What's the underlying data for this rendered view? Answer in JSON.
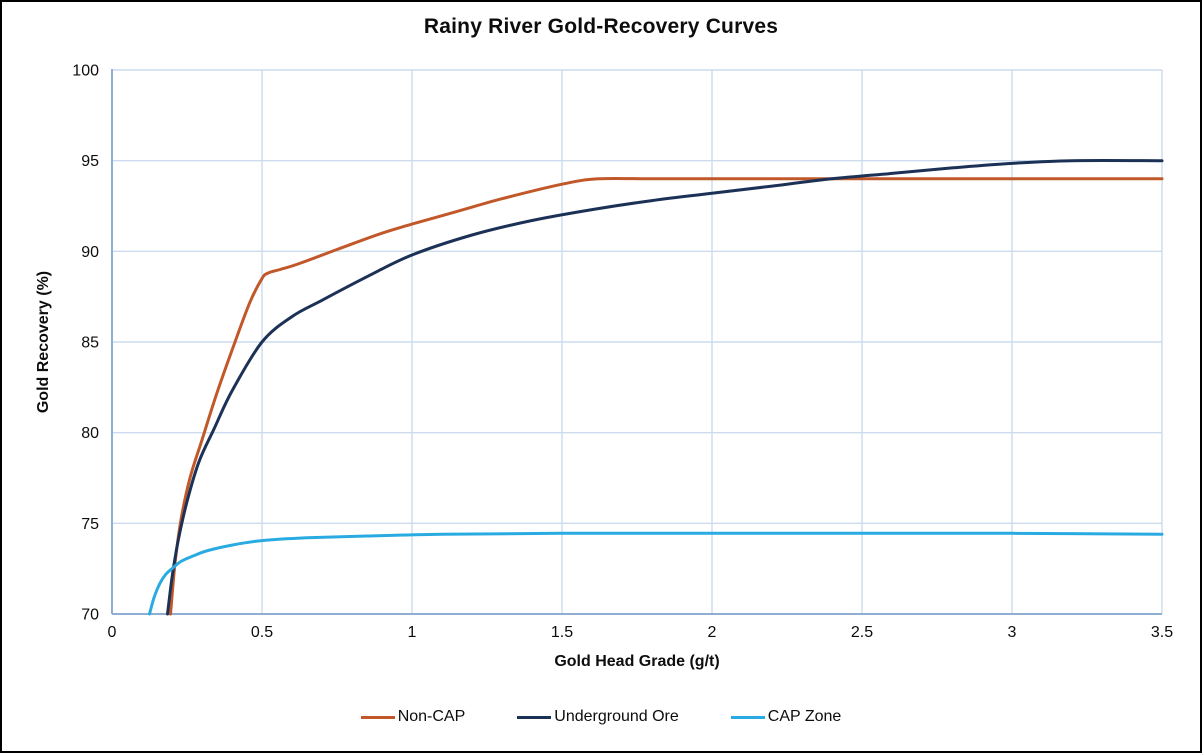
{
  "chart_data": {
    "type": "line",
    "title": "Rainy River Gold-Recovery Curves",
    "xlabel": "Gold Head Grade (g/t)",
    "ylabel": "Gold Recovery (%)",
    "xlim": [
      0,
      3.5
    ],
    "ylim": [
      70,
      100
    ],
    "xticks": [
      0,
      0.5,
      1,
      1.5,
      2,
      2.5,
      3,
      3.5
    ],
    "yticks": [
      70,
      75,
      80,
      85,
      90,
      95,
      100
    ],
    "grid": true,
    "legend_position": "bottom",
    "gridline_color": "#ccdcee",
    "axis_color": "#8fafd2",
    "text_color": "#0d0d0d",
    "series": [
      {
        "name": "Non-CAP",
        "color": "#c1582a",
        "x": [
          0.195,
          0.21,
          0.23,
          0.26,
          0.3,
          0.35,
          0.41,
          0.46,
          0.5,
          0.52,
          0.56,
          0.62,
          0.75,
          0.9,
          1.0,
          1.15,
          1.3,
          1.5,
          1.62,
          1.8,
          2.0,
          2.5,
          3.0,
          3.5
        ],
        "y": [
          70,
          72.8,
          75.2,
          77.5,
          79.6,
          82.2,
          85.0,
          87.2,
          88.5,
          88.8,
          89.0,
          89.3,
          90.1,
          91.0,
          91.5,
          92.2,
          92.9,
          93.7,
          94.0,
          94.0,
          94.0,
          94.0,
          94.0,
          94.0
        ]
      },
      {
        "name": "Underground Ore",
        "color": "#1c3156",
        "x": [
          0.185,
          0.2,
          0.22,
          0.25,
          0.29,
          0.34,
          0.4,
          0.5,
          0.6,
          0.7,
          0.85,
          1.0,
          1.2,
          1.4,
          1.6,
          1.8,
          2.0,
          2.2,
          2.4,
          2.6,
          2.8,
          3.0,
          3.2,
          3.5
        ],
        "y": [
          70,
          72.0,
          74.0,
          76.2,
          78.4,
          80.2,
          82.3,
          85.0,
          86.4,
          87.3,
          88.6,
          89.8,
          90.9,
          91.7,
          92.3,
          92.8,
          93.2,
          93.6,
          94.0,
          94.3,
          94.6,
          94.85,
          95.0,
          95.0
        ]
      },
      {
        "name": "CAP Zone",
        "color": "#29abe2",
        "x": [
          0.125,
          0.14,
          0.16,
          0.18,
          0.2,
          0.23,
          0.27,
          0.32,
          0.4,
          0.5,
          0.65,
          0.85,
          1.1,
          1.5,
          2.0,
          2.5,
          3.0,
          3.5
        ],
        "y": [
          70,
          70.9,
          71.7,
          72.2,
          72.5,
          72.9,
          73.2,
          73.5,
          73.8,
          74.05,
          74.2,
          74.3,
          74.4,
          74.45,
          74.45,
          74.45,
          74.45,
          74.4
        ]
      }
    ]
  }
}
